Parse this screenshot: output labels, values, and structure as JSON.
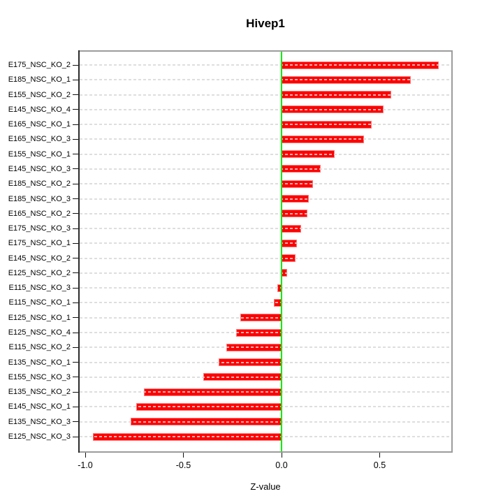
{
  "chart_data": {
    "type": "bar",
    "orientation": "horizontal",
    "title": "Hivep1",
    "xlabel": "Z-value",
    "categories": [
      "E175_NSC_KO_2",
      "E185_NSC_KO_1",
      "E155_NSC_KO_2",
      "E145_NSC_KO_4",
      "E165_NSC_KO_1",
      "E165_NSC_KO_3",
      "E155_NSC_KO_1",
      "E145_NSC_KO_3",
      "E185_NSC_KO_2",
      "E185_NSC_KO_3",
      "E165_NSC_KO_2",
      "E175_NSC_KO_3",
      "E175_NSC_KO_1",
      "E145_NSC_KO_2",
      "E125_NSC_KO_2",
      "E115_NSC_KO_3",
      "E115_NSC_KO_1",
      "E125_NSC_KO_1",
      "E125_NSC_KO_4",
      "E115_NSC_KO_2",
      "E135_NSC_KO_1",
      "E155_NSC_KO_3",
      "E135_NSC_KO_2",
      "E145_NSC_KO_1",
      "E135_NSC_KO_3",
      "E125_NSC_KO_3"
    ],
    "values": [
      0.8,
      0.66,
      0.56,
      0.52,
      0.46,
      0.42,
      0.27,
      0.2,
      0.16,
      0.14,
      0.13,
      0.1,
      0.08,
      0.07,
      0.03,
      -0.02,
      -0.04,
      -0.21,
      -0.23,
      -0.28,
      -0.32,
      -0.4,
      -0.7,
      -0.74,
      -0.77,
      -0.96
    ],
    "x_tick_values": [
      -1.0,
      -0.5,
      0.0,
      0.5
    ],
    "x_tick_labels": [
      "-1.0",
      "-0.5",
      "0.0",
      "0.5"
    ],
    "xlim": [
      -1.04,
      0.87
    ],
    "grid": "horizontal dashed line per category, full plot width",
    "legend": "none",
    "zero_reference_line": 0.0,
    "colors": {
      "bar": "#ff0000",
      "zero_line": "#00ee00",
      "grid": "#d8d8d8",
      "box_border": "#9c9c9c",
      "text": "#000000"
    }
  }
}
